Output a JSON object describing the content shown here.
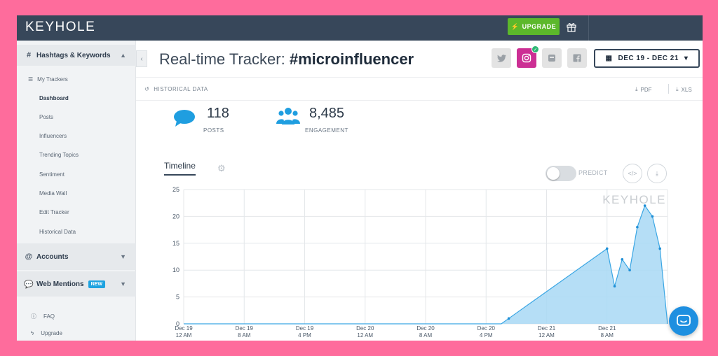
{
  "app": {
    "logo": "KEYHOLE",
    "upgrade_label": "UPGRADE"
  },
  "sidebar": {
    "section_hashtags": "Hashtags & Keywords",
    "my_trackers": "My Trackers",
    "items": [
      {
        "label": "Dashboard",
        "active": true
      },
      {
        "label": "Posts"
      },
      {
        "label": "Influencers"
      },
      {
        "label": "Trending Topics"
      },
      {
        "label": "Sentiment"
      },
      {
        "label": "Media Wall"
      },
      {
        "label": "Edit Tracker"
      },
      {
        "label": "Historical Data"
      }
    ],
    "section_accounts": "Accounts",
    "section_mentions": "Web Mentions",
    "new_badge": "NEW",
    "footer": [
      {
        "label": "FAQ",
        "icon": "info-icon"
      },
      {
        "label": "Upgrade",
        "icon": "bolt-icon"
      }
    ]
  },
  "header": {
    "title_prefix": "Real-time Tracker:",
    "title_tag": "#microinfluencer",
    "date_range": "DEC 19 - DEC 21",
    "social": [
      "twitter-icon",
      "instagram-icon",
      "youtube-icon",
      "facebook-icon"
    ]
  },
  "subbar": {
    "historical": "HISTORICAL DATA",
    "pdf": "PDF",
    "xls": "XLS"
  },
  "stats": {
    "posts_value": "118",
    "posts_label": "POSTS",
    "engagement_value": "8,485",
    "engagement_label": "ENGAGEMENT"
  },
  "timeline": {
    "tab_label": "Timeline",
    "predict_label": "PREDICT",
    "watermark": "KEYHOLE"
  },
  "colors": {
    "accent": "#1f9ee0",
    "topbar": "#37475a",
    "upgrade": "#5cb82b",
    "instagram": "#cc2f94",
    "fill": "#a8d8f5"
  },
  "chart_data": {
    "type": "area",
    "ylim": [
      0,
      25
    ],
    "yticks": [
      0,
      5,
      10,
      15,
      20,
      25
    ],
    "xlim": [
      0,
      62
    ],
    "xticks": [
      {
        "x": 0,
        "label": [
          "Dec 19",
          "12 AM"
        ]
      },
      {
        "x": 8,
        "label": [
          "Dec 19",
          "8 AM"
        ]
      },
      {
        "x": 16,
        "label": [
          "Dec 19",
          "4 PM"
        ]
      },
      {
        "x": 24,
        "label": [
          "Dec 20",
          "12 AM"
        ]
      },
      {
        "x": 32,
        "label": [
          "Dec 20",
          "8 AM"
        ]
      },
      {
        "x": 40,
        "label": [
          "Dec 20",
          "4 PM"
        ]
      },
      {
        "x": 48,
        "label": [
          "Dec 21",
          "12 AM"
        ]
      },
      {
        "x": 56,
        "label": [
          "Dec 21",
          "8 AM"
        ]
      }
    ],
    "series": [
      {
        "points": [
          [
            0,
            0
          ],
          [
            42,
            0
          ],
          [
            43,
            1
          ],
          [
            56,
            14
          ],
          [
            57,
            7
          ],
          [
            58,
            12
          ],
          [
            59,
            10
          ],
          [
            60,
            18
          ],
          [
            61,
            22
          ],
          [
            62,
            20
          ],
          [
            63,
            14
          ],
          [
            64,
            0
          ]
        ]
      }
    ]
  }
}
